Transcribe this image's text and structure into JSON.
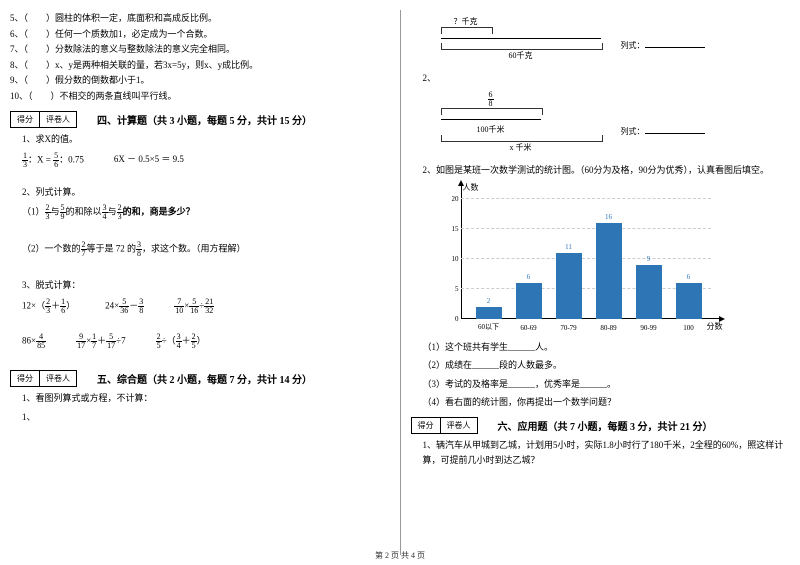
{
  "left": {
    "judgments": [
      {
        "num": "5、（　　）",
        "text": "圆柱的体积一定，底面积和高成反比例。"
      },
      {
        "num": "6、（　　）",
        "text": "任何一个质数加1，必定成为一个合数。"
      },
      {
        "num": "7、（　　）",
        "text": "分数除法的意义与整数除法的意义完全相同。"
      },
      {
        "num": "8、（　　）",
        "text": "x、y是两种相关联的量，若3x=5y，则x、y成比例。"
      },
      {
        "num": "9、（　　）",
        "text": "假分数的倒数都小于1。"
      },
      {
        "num": "10、（　　）",
        "text": "不相交的两条直线叫平行线。"
      }
    ],
    "scoreBox": {
      "a": "得分",
      "b": "评卷人"
    },
    "section4": {
      "title": "四、计算题（共 3 小题，每题 5 分，共计 15 分）",
      "q1": "1、求X的值。",
      "e1a_n": "1",
      "e1a_d": "3",
      "e1a_mid": "：X =",
      "e1b_n": "5",
      "e1b_d": "6",
      "e1a_end": "：0.75",
      "e1c": "6X － 0.5×5 ＝ 9.5",
      "q2": "2、列式计算。",
      "q2_1a": "（1）",
      "q2_1_f1n": "2",
      "q2_1_f1d": "3",
      "q2_1_m1": "与",
      "q2_1_f2n": "5",
      "q2_1_f2d": "9",
      "q2_1_m2": "的和除以",
      "q2_1_f3n": "3",
      "q2_1_f3d": "4",
      "q2_1_m3": "与",
      "q2_1_f4n": "2",
      "q2_1_f4d": "3",
      "q2_1_end": "的和，商是多少？",
      "q2_2a": "（2）一个数的",
      "q2_2_f1n": "2",
      "q2_2_f1d": "7",
      "q2_2_m": "等于是 72 的",
      "q2_2_f2n": "3",
      "q2_2_f2d": "8",
      "q2_2_end": "，求这个数。（用方程解）",
      "q3": "3、脱式计算：",
      "row1": {
        "a_pre": "12×（",
        "a_f1n": "2",
        "a_f1d": "3",
        "a_mid": "＋",
        "a_f2n": "1",
        "a_f2d": "6",
        "a_post": "）",
        "b_pre": "24×",
        "b_f1n": "5",
        "b_f1d": "36",
        "b_mid": "－",
        "b_f2n": "3",
        "b_f2d": "8",
        "c_f1n": "7",
        "c_f1d": "10",
        "c_m1": "×",
        "c_f2n": "5",
        "c_f2d": "16",
        "c_m2": "÷",
        "c_f3n": "21",
        "c_f3d": "32"
      },
      "row2": {
        "a_pre": "86×",
        "a_f1n": "4",
        "a_f1d": "85",
        "b_f1n": "9",
        "b_f1d": "17",
        "b_m1": "×",
        "b_f2n": "1",
        "b_f2d": "7",
        "b_m2": "＋",
        "b_f3n": "5",
        "b_f3d": "17",
        "b_m3": "÷7",
        "c_f1n": "2",
        "c_f1d": "5",
        "c_m1": "÷（",
        "c_f2n": "3",
        "c_f2d": "4",
        "c_m2": "＋",
        "c_f3n": "2",
        "c_f3d": "5",
        "c_end": "）"
      }
    },
    "section5": {
      "title": "五、综合题（共 2 小题，每题 7 分，共计 14 分）",
      "q1": "1、看图列算式或方程，不计算："
    }
  },
  "right": {
    "d1": {
      "top": "？千克",
      "bottom": "60千克",
      "side": "列式：",
      "blank": ""
    },
    "d2": {
      "topn": "6",
      "topd": "8",
      "mid": "100千米",
      "bottom": "x 千米",
      "side": "列式：",
      "blank": ""
    },
    "q2_lead": "2、如图是某班一次数学测试的统计图。（60分为及格，90分为优秀），认真看图后填空。",
    "chart": {
      "ylabel": "人数",
      "xlabel": "分数",
      "ymax": 20,
      "ticks": [
        5,
        10,
        15,
        20
      ],
      "bars": [
        {
          "cat": "60以下",
          "val": 2
        },
        {
          "cat": "60-69",
          "val": 6
        },
        {
          "cat": "70-79",
          "val": 11
        },
        {
          "cat": "80-89",
          "val": 16
        },
        {
          "cat": "90-99",
          "val": 9
        },
        {
          "cat": "100",
          "val": 6
        }
      ],
      "bar_color": "#2e75b6",
      "grid_color": "#cccccc"
    },
    "chart_qs": [
      "（1）这个班共有学生______人。",
      "（2）成绩在______段的人数最多。",
      "（3）考试的及格率是______，优秀率是______。",
      "（4）看右面的统计图，你再提出一个数学问题？"
    ],
    "scoreBox": {
      "a": "得分",
      "b": "评卷人"
    },
    "section6": {
      "title": "六、应用题（共 7 小题，每题 3 分，共计 21 分）",
      "q1": "1、辆汽车从甲城到乙城，计划用5小时，实际1.8小时行了180千米，2全程的60%，照这样计算，可提前几小时到达乙城？"
    }
  },
  "footer": "第 2 页 共 4 页"
}
